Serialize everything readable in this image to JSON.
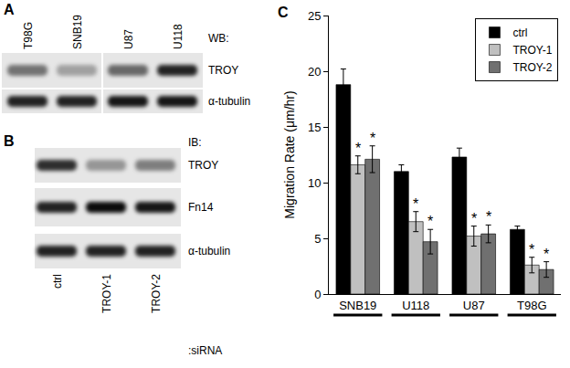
{
  "panels": [
    {
      "panel": "A",
      "method": "WB:",
      "lanes": [
        "T98G",
        "SNB19",
        "U87",
        "U118"
      ],
      "rows": [
        {
          "name": "TROY",
          "intensity": [
            0.5,
            0.3,
            0.55,
            0.85
          ]
        },
        {
          "name": "α-tubulin",
          "intensity": [
            0.85,
            0.85,
            0.9,
            0.9
          ]
        }
      ]
    },
    {
      "panel": "B",
      "method": "IB:",
      "lanes": [
        "ctrl",
        "TROY-1",
        "TROY-2"
      ],
      "lane_caption": ":siRNA",
      "rows": [
        {
          "name": "TROY",
          "intensity": [
            0.8,
            0.35,
            0.45
          ]
        },
        {
          "name": "Fn14",
          "intensity": [
            0.85,
            0.95,
            0.9
          ]
        },
        {
          "name": "α-tubulin",
          "intensity": [
            0.85,
            0.85,
            0.85
          ]
        }
      ]
    }
  ],
  "chart_data": {
    "panel": "C",
    "type": "bar",
    "y_label": "Migration Rate (μm/hr)",
    "categories": [
      "SNB19",
      "U118",
      "U87",
      "T98G"
    ],
    "series": [
      {
        "name": "ctrl",
        "color": "#000000",
        "values": [
          18.8,
          11.0,
          12.3,
          5.8
        ],
        "error": [
          1.4,
          0.6,
          0.8,
          0.3
        ]
      },
      {
        "name": "TROY-1",
        "color": "#c0c0c0",
        "values": [
          11.6,
          6.5,
          5.2,
          2.6
        ],
        "error": [
          0.8,
          0.9,
          0.9,
          0.7
        ],
        "annotations": [
          "*",
          "*",
          "*",
          "*"
        ]
      },
      {
        "name": "TROY-2",
        "color": "#707070",
        "values": [
          12.1,
          4.7,
          5.4,
          2.2
        ],
        "error": [
          1.2,
          1.1,
          0.8,
          0.7
        ],
        "annotations": [
          "*",
          "*",
          "*",
          "*"
        ]
      }
    ],
    "ylim": [
      0,
      25
    ],
    "yticks": [
      0,
      5,
      10,
      15,
      20,
      25
    ],
    "grid": false,
    "legend": "top-right"
  }
}
